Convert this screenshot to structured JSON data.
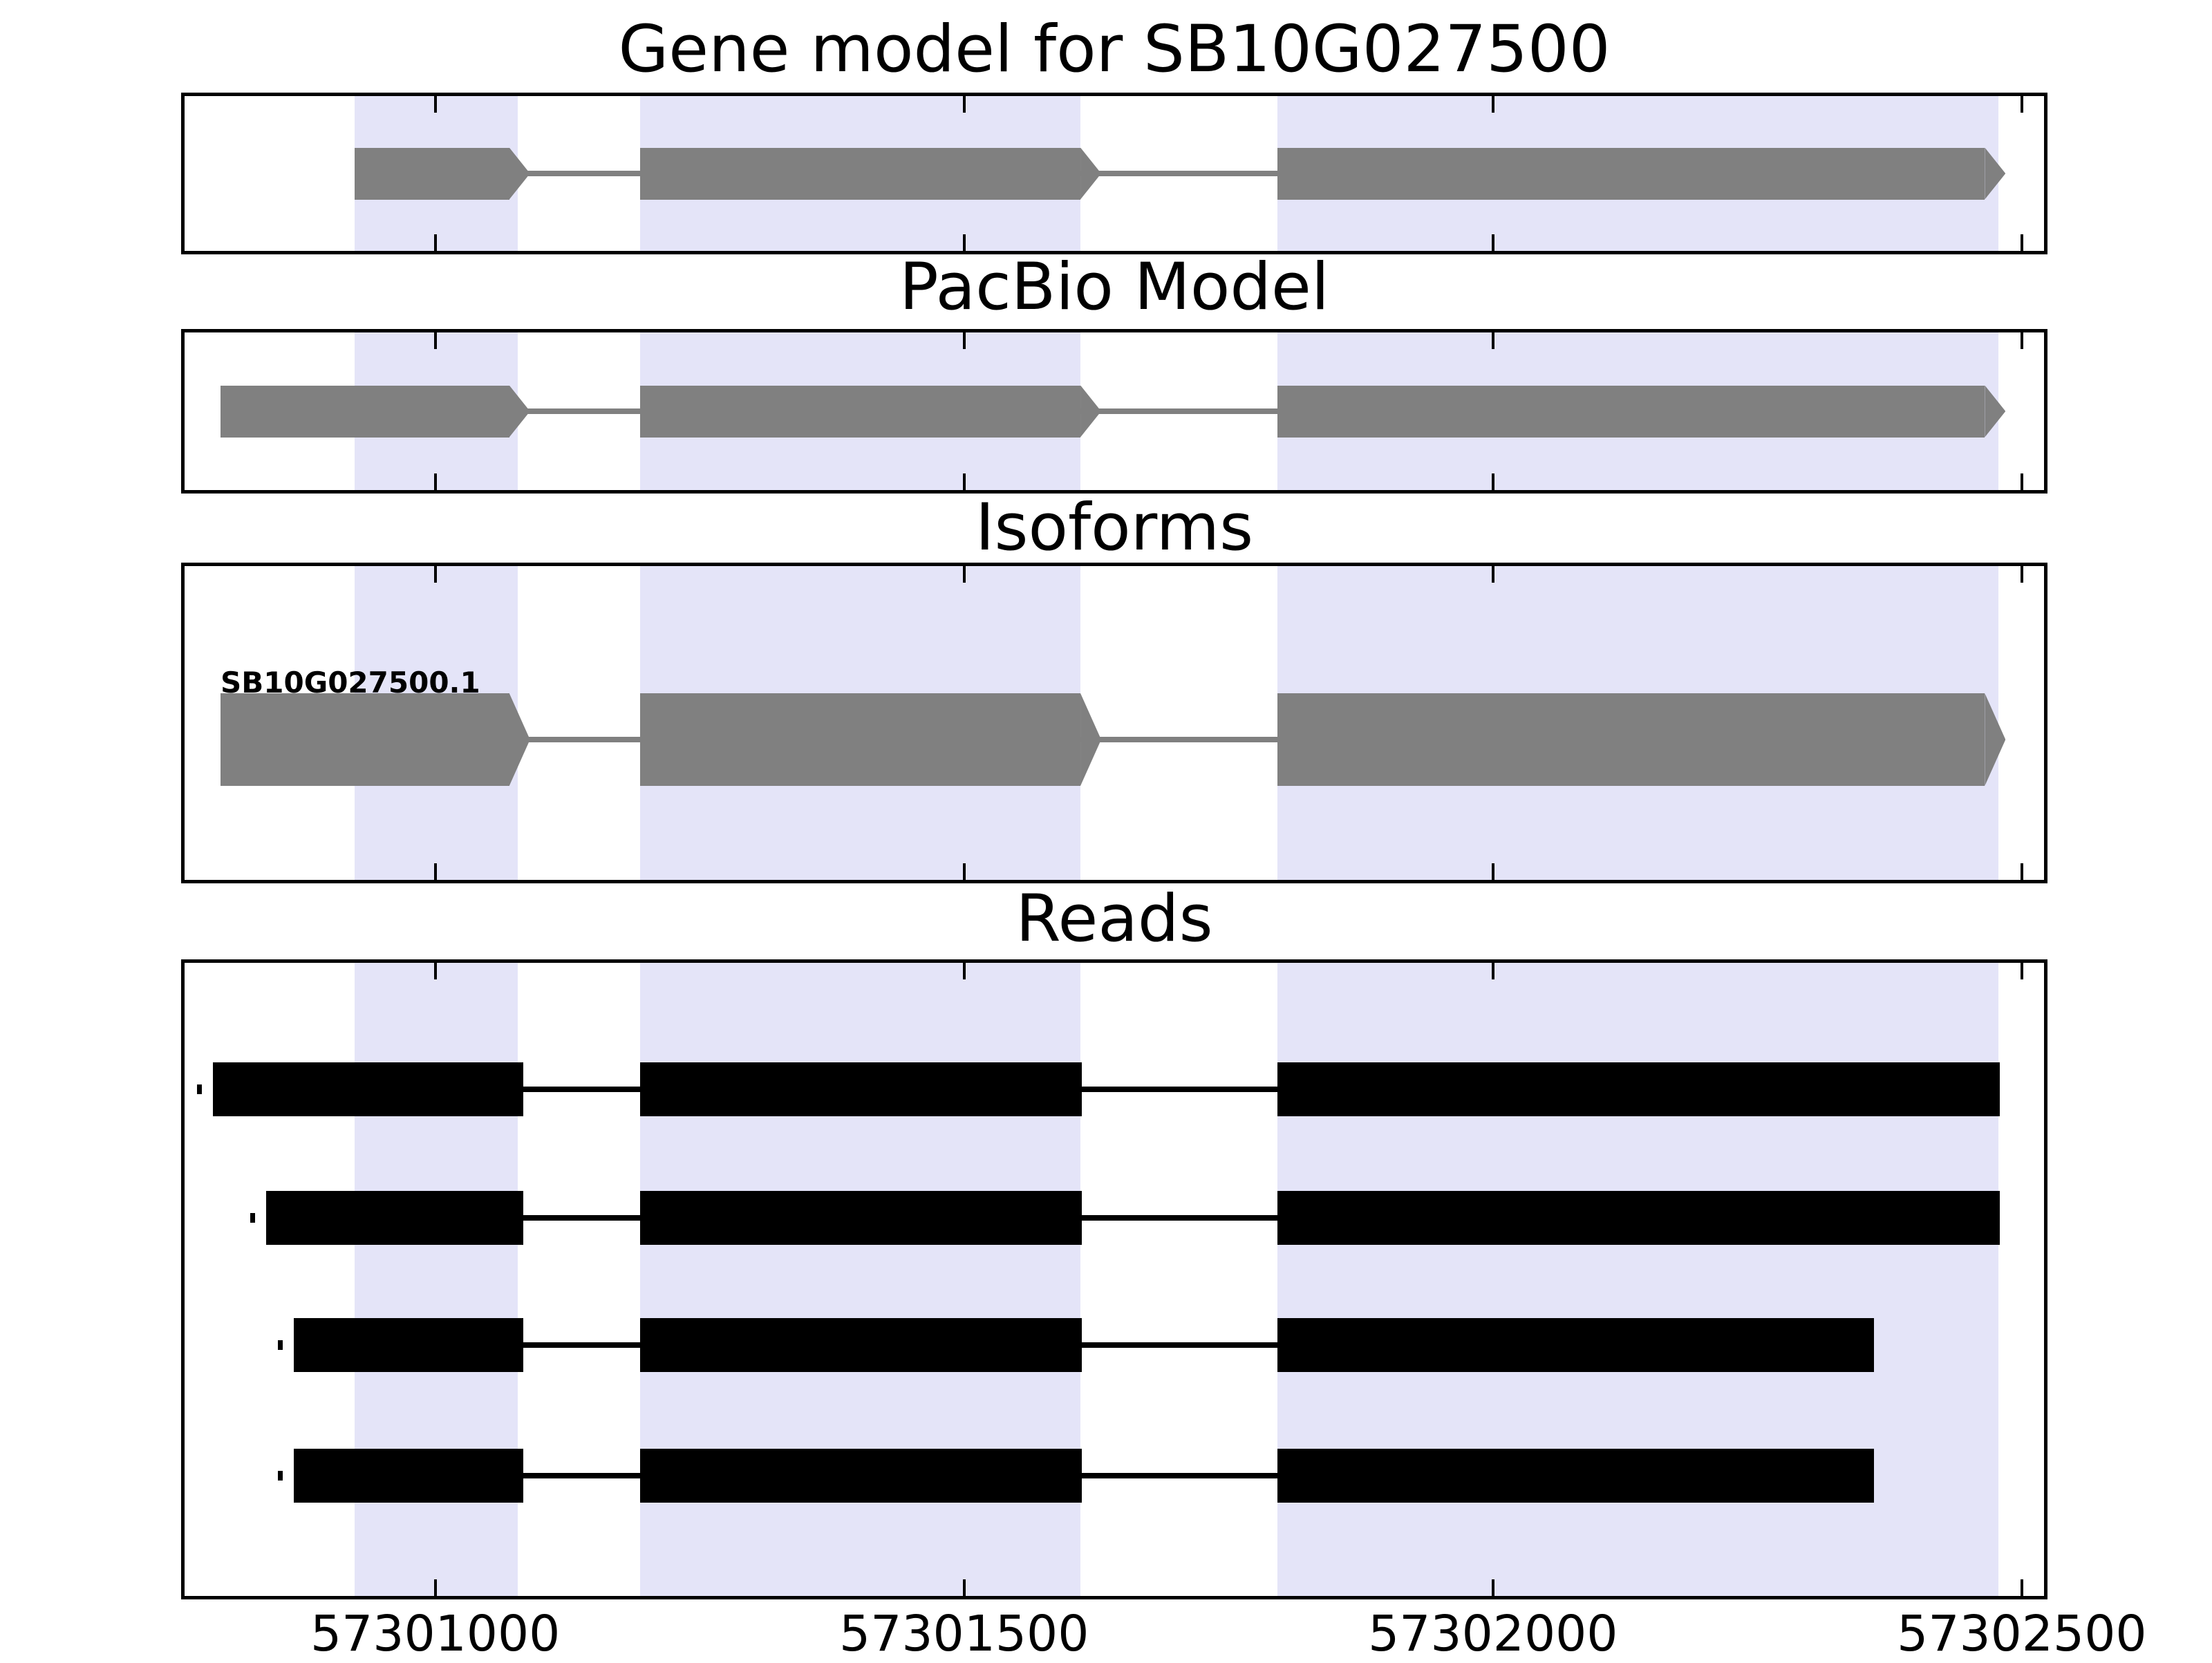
{
  "colors": {
    "exon_gray": "#808080",
    "read_black": "#000000",
    "highlight_band": "#E4E4F8",
    "spine": "#000000",
    "background": "#FFFFFF"
  },
  "chart_data": {
    "type": "bar",
    "subtype": "genomic-feature-tracks",
    "title": "Gene model for SB10G027500",
    "layout": {
      "subplots": 4,
      "shared_x": true,
      "grid": false,
      "legend": "none"
    },
    "x_axis": {
      "label": "",
      "range": [
        57300763,
        57302521
      ],
      "ticks": [
        57301000,
        57301500,
        57302000,
        57302500
      ],
      "tick_labels": [
        "57301000",
        "57301500",
        "57302000",
        "57302500"
      ]
    },
    "highlight_regions": [
      [
        57300924,
        57301078
      ],
      [
        57301194,
        57301610
      ],
      [
        57301796,
        57302478
      ]
    ],
    "panels": [
      {
        "title": "Gene model for SB10G027500",
        "tracks": [
          {
            "style": "arrow",
            "strand": "+",
            "color": "#808080",
            "exons": [
              [
                57300924,
                57301070
              ],
              [
                57301194,
                57301610
              ],
              [
                57301796,
                57302465
              ]
            ]
          }
        ]
      },
      {
        "title": "PacBio Model",
        "tracks": [
          {
            "style": "arrow",
            "strand": "+",
            "color": "#808080",
            "exons": [
              [
                57300797,
                57301070
              ],
              [
                57301194,
                57301610
              ],
              [
                57301796,
                57302465
              ]
            ]
          }
        ]
      },
      {
        "title": "Isoforms",
        "tracks": [
          {
            "style": "arrow",
            "strand": "+",
            "color": "#808080",
            "label": "SB10G027500.1",
            "exons": [
              [
                57300797,
                57301070
              ],
              [
                57301194,
                57301610
              ],
              [
                57301796,
                57302465
              ]
            ]
          }
        ]
      },
      {
        "title": "Reads",
        "tracks": [
          {
            "style": "rect",
            "color": "#000000",
            "exons": [
              [
                57300790,
                57301083
              ],
              [
                57301194,
                57301611
              ],
              [
                57301796,
                57302479
              ]
            ]
          },
          {
            "style": "rect",
            "color": "#000000",
            "exons": [
              [
                57300840,
                57301083
              ],
              [
                57301194,
                57301611
              ],
              [
                57301796,
                57302479
              ]
            ]
          },
          {
            "style": "rect",
            "color": "#000000",
            "exons": [
              [
                57300866,
                57301083
              ],
              [
                57301194,
                57301611
              ],
              [
                57301796,
                57302360
              ]
            ]
          },
          {
            "style": "rect",
            "color": "#000000",
            "exons": [
              [
                57300866,
                57301083
              ],
              [
                57301194,
                57301611
              ],
              [
                57301796,
                57302360
              ]
            ]
          }
        ]
      }
    ]
  }
}
